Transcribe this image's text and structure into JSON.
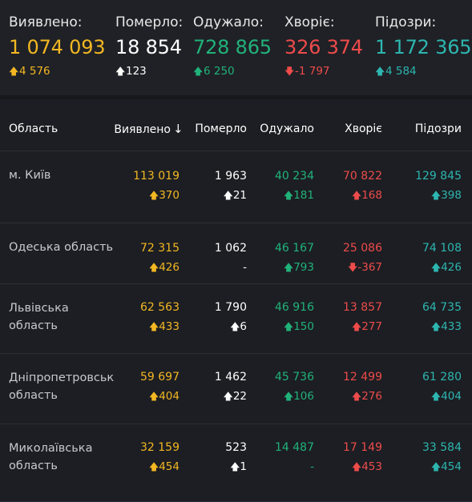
{
  "summary": [
    {
      "key": "confirmed",
      "label": "Виявлено:",
      "value": "1 074 093",
      "delta": "4 576",
      "dir": "up",
      "color": "#f3b722"
    },
    {
      "key": "deaths",
      "label": "Померло:",
      "value": "18 854",
      "delta": "123",
      "dir": "up",
      "color": "#ffffff"
    },
    {
      "key": "recovered",
      "label": "Одужало:",
      "value": "728 865",
      "delta": "6 250",
      "dir": "up",
      "color": "#21b27a"
    },
    {
      "key": "sick",
      "label": "Хворіє:",
      "value": "326 374",
      "delta": "-1 797",
      "dir": "down",
      "color": "#ee4b4b"
    },
    {
      "key": "suspected",
      "label": "Підозри:",
      "value": "1 172 365",
      "delta": "4 584",
      "dir": "up",
      "color": "#2db6b0"
    }
  ],
  "table": {
    "headers": {
      "region": "Область",
      "confirmed": "Виявлено",
      "deaths": "Померло",
      "recovered": "Одужало",
      "sick": "Хворіє",
      "suspected": "Підозри"
    },
    "rows": [
      {
        "region": "м. Київ",
        "confirmed": "113 019",
        "confirmed_d": "370",
        "deaths": "1 963",
        "deaths_d": "21",
        "recovered": "40 234",
        "recovered_d": "181",
        "sick": "70 822",
        "sick_d": "168",
        "sick_dir": "up",
        "suspected": "129 845",
        "suspected_d": "398"
      },
      {
        "region": "Одеська область",
        "confirmed": "72 315",
        "confirmed_d": "426",
        "deaths": "1 062",
        "deaths_d": "-",
        "recovered": "46 167",
        "recovered_d": "793",
        "sick": "25 086",
        "sick_d": "-367",
        "sick_dir": "down",
        "suspected": "74 108",
        "suspected_d": "426"
      },
      {
        "region": "Львівська область",
        "confirmed": "62 563",
        "confirmed_d": "433",
        "deaths": "1 790",
        "deaths_d": "6",
        "recovered": "46 916",
        "recovered_d": "150",
        "sick": "13 857",
        "sick_d": "277",
        "sick_dir": "up",
        "suspected": "64 735",
        "suspected_d": "433"
      },
      {
        "region": "Дніпропетровськ область",
        "confirmed": "59 697",
        "confirmed_d": "404",
        "deaths": "1 462",
        "deaths_d": "22",
        "recovered": "45 736",
        "recovered_d": "106",
        "sick": "12 499",
        "sick_d": "276",
        "sick_dir": "up",
        "suspected": "61 280",
        "suspected_d": "404"
      },
      {
        "region": "Миколаївська область",
        "confirmed": "32 159",
        "confirmed_d": "454",
        "deaths": "523",
        "deaths_d": "1",
        "recovered": "14 487",
        "recovered_d": "-",
        "sick": "17 149",
        "sick_d": "453",
        "sick_dir": "up",
        "suspected": "33 584",
        "suspected_d": "454"
      }
    ]
  }
}
